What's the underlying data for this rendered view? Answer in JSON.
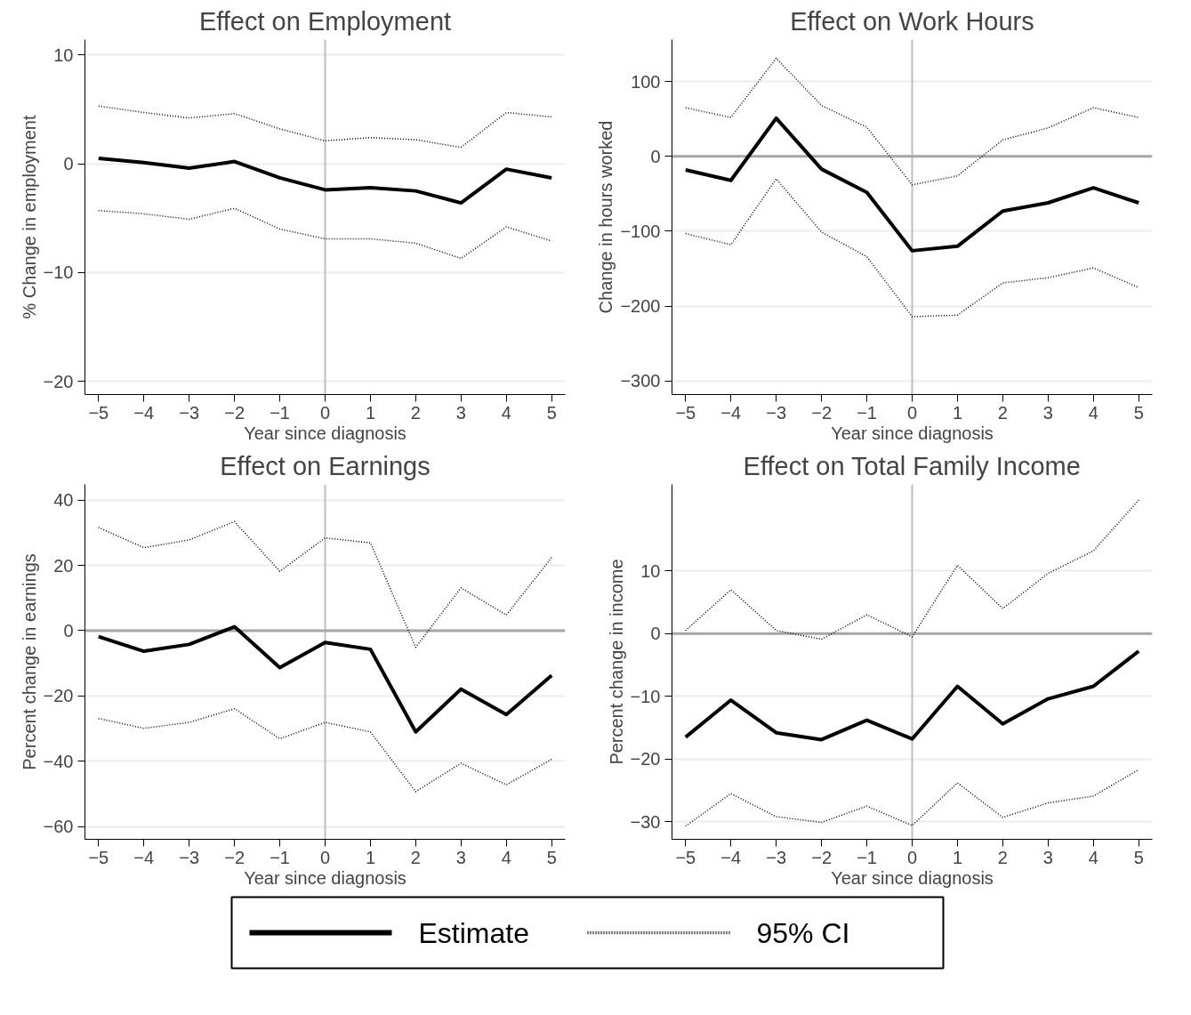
{
  "chart_data": [
    {
      "type": "line",
      "title": "Effect on Employment",
      "xlabel": "Year since diagnosis",
      "ylabel": "% Change in employment",
      "x": [
        -5,
        -4,
        -3,
        -2,
        -1,
        0,
        1,
        2,
        3,
        4,
        5
      ],
      "xlim": [
        -5.3,
        5.3
      ],
      "xticks": [
        -5,
        -4,
        -3,
        -2,
        -1,
        0,
        1,
        2,
        3,
        4,
        5
      ],
      "ylim": [
        -21.2,
        11.4
      ],
      "yticks": [
        -20,
        -10,
        0,
        10
      ],
      "grid": "y",
      "ref_lines": [
        {
          "axis": "x",
          "value": 0,
          "color": "#bfbfbf"
        }
      ],
      "series": [
        {
          "color": "#000000",
          "line_style": "solid",
          "values": [
            0.5,
            0.1,
            -0.4,
            0.2,
            -1.3,
            -2.4,
            -2.2,
            -2.5,
            -3.6,
            -0.5,
            -1.3
          ]
        },
        {
          "color": "#000000",
          "line_style": "dotted",
          "values": [
            5.3,
            4.7,
            4.2,
            4.6,
            3.2,
            2.1,
            2.4,
            2.2,
            1.5,
            4.7,
            4.3
          ]
        },
        {
          "color": "#000000",
          "line_style": "dotted",
          "values": [
            -4.3,
            -4.6,
            -5.1,
            -4.1,
            -6.0,
            -6.9,
            -6.9,
            -7.3,
            -8.7,
            -5.8,
            -7.1
          ]
        }
      ]
    },
    {
      "type": "line",
      "title": "Effect on Work Hours",
      "xlabel": "Year since diagnosis",
      "ylabel": "Change in hours worked",
      "x": [
        -5,
        -4,
        -3,
        -2,
        -1,
        0,
        1,
        2,
        3,
        4,
        5
      ],
      "xlim": [
        -5.3,
        5.3
      ],
      "xticks": [
        -5,
        -4,
        -3,
        -2,
        -1,
        0,
        1,
        2,
        3,
        4,
        5
      ],
      "ylim": [
        -318,
        156
      ],
      "yticks": [
        -300,
        -200,
        -100,
        0,
        100
      ],
      "grid": "y",
      "ref_lines": [
        {
          "axis": "x",
          "value": 0,
          "color": "#bfbfbf"
        },
        {
          "axis": "y",
          "value": 0,
          "color": "#a6a6a6"
        }
      ],
      "series": [
        {
          "color": "#000000",
          "line_style": "solid",
          "values": [
            -18,
            -32,
            51,
            -17,
            -48,
            -126,
            -120,
            -73,
            -62,
            -42,
            -62
          ]
        },
        {
          "color": "#000000",
          "line_style": "dotted",
          "values": [
            65,
            52,
            131,
            68,
            39,
            -38,
            -26,
            22,
            38,
            65,
            52
          ]
        },
        {
          "color": "#000000",
          "line_style": "dotted",
          "values": [
            -103,
            -118,
            -30,
            -101,
            -134,
            -214,
            -212,
            -169,
            -162,
            -149,
            -175
          ]
        }
      ]
    },
    {
      "type": "line",
      "title": "Effect on Earnings",
      "xlabel": "Year since diagnosis",
      "ylabel": "Percent change in earnings",
      "x": [
        -5,
        -4,
        -3,
        -2,
        -1,
        0,
        1,
        2,
        3,
        4,
        5
      ],
      "xlim": [
        -5.3,
        5.3
      ],
      "xticks": [
        -5,
        -4,
        -3,
        -2,
        -1,
        0,
        1,
        2,
        3,
        4,
        5
      ],
      "ylim": [
        -63.9,
        44.8
      ],
      "yticks": [
        -60,
        -40,
        -20,
        0,
        20,
        40
      ],
      "grid": "y",
      "ref_lines": [
        {
          "axis": "x",
          "value": 0,
          "color": "#bfbfbf"
        },
        {
          "axis": "y",
          "value": 0,
          "color": "#a6a6a6"
        }
      ],
      "series": [
        {
          "color": "#000000",
          "line_style": "solid",
          "values": [
            -1.8,
            -6.3,
            -4.2,
            1.2,
            -11.3,
            -3.6,
            -5.7,
            -31,
            -17.9,
            -25.7,
            -13.7
          ]
        },
        {
          "color": "#000000",
          "line_style": "dotted",
          "values": [
            31.6,
            25.4,
            27.8,
            33.4,
            18.2,
            28.4,
            26.9,
            -5.1,
            13.1,
            4.8,
            22.4
          ]
        },
        {
          "color": "#000000",
          "line_style": "dotted",
          "values": [
            -26.9,
            -29.9,
            -28.1,
            -23.9,
            -33.1,
            -28.1,
            -31,
            -49.3,
            -40.6,
            -47.2,
            -39.4
          ]
        }
      ]
    },
    {
      "type": "line",
      "title": "Effect on Total Family Income",
      "xlabel": "Year since diagnosis",
      "ylabel": "Percent change in income",
      "x": [
        -5,
        -4,
        -3,
        -2,
        -1,
        0,
        1,
        2,
        3,
        4,
        5
      ],
      "xlim": [
        -5.3,
        5.3
      ],
      "xticks": [
        -5,
        -4,
        -3,
        -2,
        -1,
        0,
        1,
        2,
        3,
        4,
        5
      ],
      "ylim": [
        -32.8,
        23.8
      ],
      "yticks": [
        -30,
        -20,
        -10,
        0,
        10
      ],
      "grid": "y",
      "legend": "bottom",
      "ref_lines": [
        {
          "axis": "x",
          "value": 0,
          "color": "#bfbfbf"
        },
        {
          "axis": "y",
          "value": 0,
          "color": "#a6a6a6"
        }
      ],
      "series": [
        {
          "name": "Estimate",
          "color": "#000000",
          "line_style": "solid",
          "values": [
            -16.5,
            -10.6,
            -15.8,
            -16.9,
            -13.8,
            -16.8,
            -8.4,
            -14.4,
            -10.4,
            -8.4,
            -2.8
          ]
        },
        {
          "name": "95% CI",
          "color": "#000000",
          "line_style": "dotted",
          "values": [
            0.5,
            7,
            0.5,
            -0.9,
            3,
            -0.5,
            10.9,
            4,
            9.6,
            13.2,
            21.3
          ]
        },
        {
          "color": "#000000",
          "line_style": "dotted",
          "values": [
            -30.7,
            -25.5,
            -29.2,
            -30.1,
            -27.5,
            -30.6,
            -23.8,
            -29.3,
            -27,
            -25.9,
            -21.7
          ]
        }
      ]
    }
  ]
}
